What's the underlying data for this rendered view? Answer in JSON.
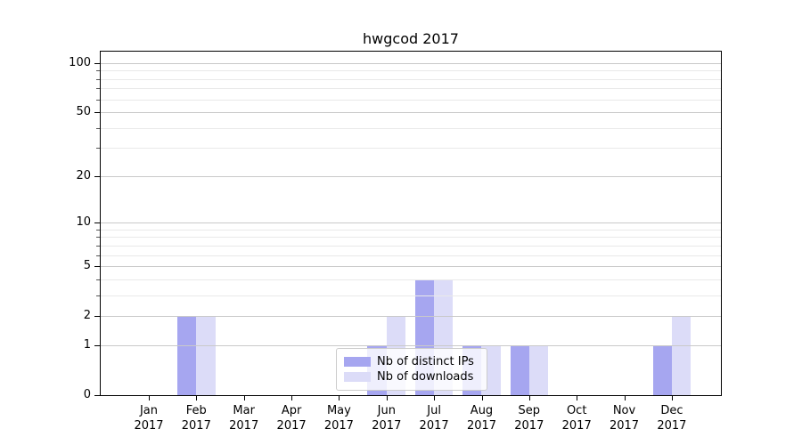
{
  "title": "hwgcod 2017",
  "chart_data": {
    "type": "bar",
    "categories": [
      "Jan 2017",
      "Feb 2017",
      "Mar 2017",
      "Apr 2017",
      "May 2017",
      "Jun 2017",
      "Jul 2017",
      "Aug 2017",
      "Sep 2017",
      "Oct 2017",
      "Nov 2017",
      "Dec 2017"
    ],
    "categories_month": [
      "Jan",
      "Feb",
      "Mar",
      "Apr",
      "May",
      "Jun",
      "Jul",
      "Aug",
      "Sep",
      "Oct",
      "Nov",
      "Dec"
    ],
    "categories_year": "2017",
    "series": [
      {
        "name": "Nb of distinct IPs",
        "color": "#a6a6f0",
        "values": [
          0,
          2,
          0,
          0,
          0,
          1,
          4,
          1,
          1,
          0,
          0,
          1
        ]
      },
      {
        "name": "Nb of downloads",
        "color": "#dcdcf8",
        "values": [
          0,
          2,
          0,
          0,
          0,
          2,
          4,
          1,
          1,
          0,
          0,
          2
        ]
      }
    ],
    "title": "hwgcod 2017",
    "xlabel": "",
    "ylabel": "",
    "yscale": "log1p",
    "ylim": [
      0,
      117.5
    ],
    "y_major_ticks": [
      0,
      1,
      2,
      5,
      10,
      20,
      50,
      100
    ],
    "y_minor_ticks": [
      3,
      4,
      6,
      7,
      8,
      9,
      30,
      40,
      60,
      70,
      80,
      90
    ],
    "grid": "on",
    "legend_position": "lower center inside plot"
  },
  "colors": {
    "background": "#ffffff",
    "spine": "#000000",
    "grid_major": "#c9c9c9",
    "grid_minor": "#e9e9e9",
    "text": "#000000",
    "legend_border": "#cccccc",
    "bar_dark": "#a6a6f0",
    "bar_light": "#dcdcf8"
  }
}
